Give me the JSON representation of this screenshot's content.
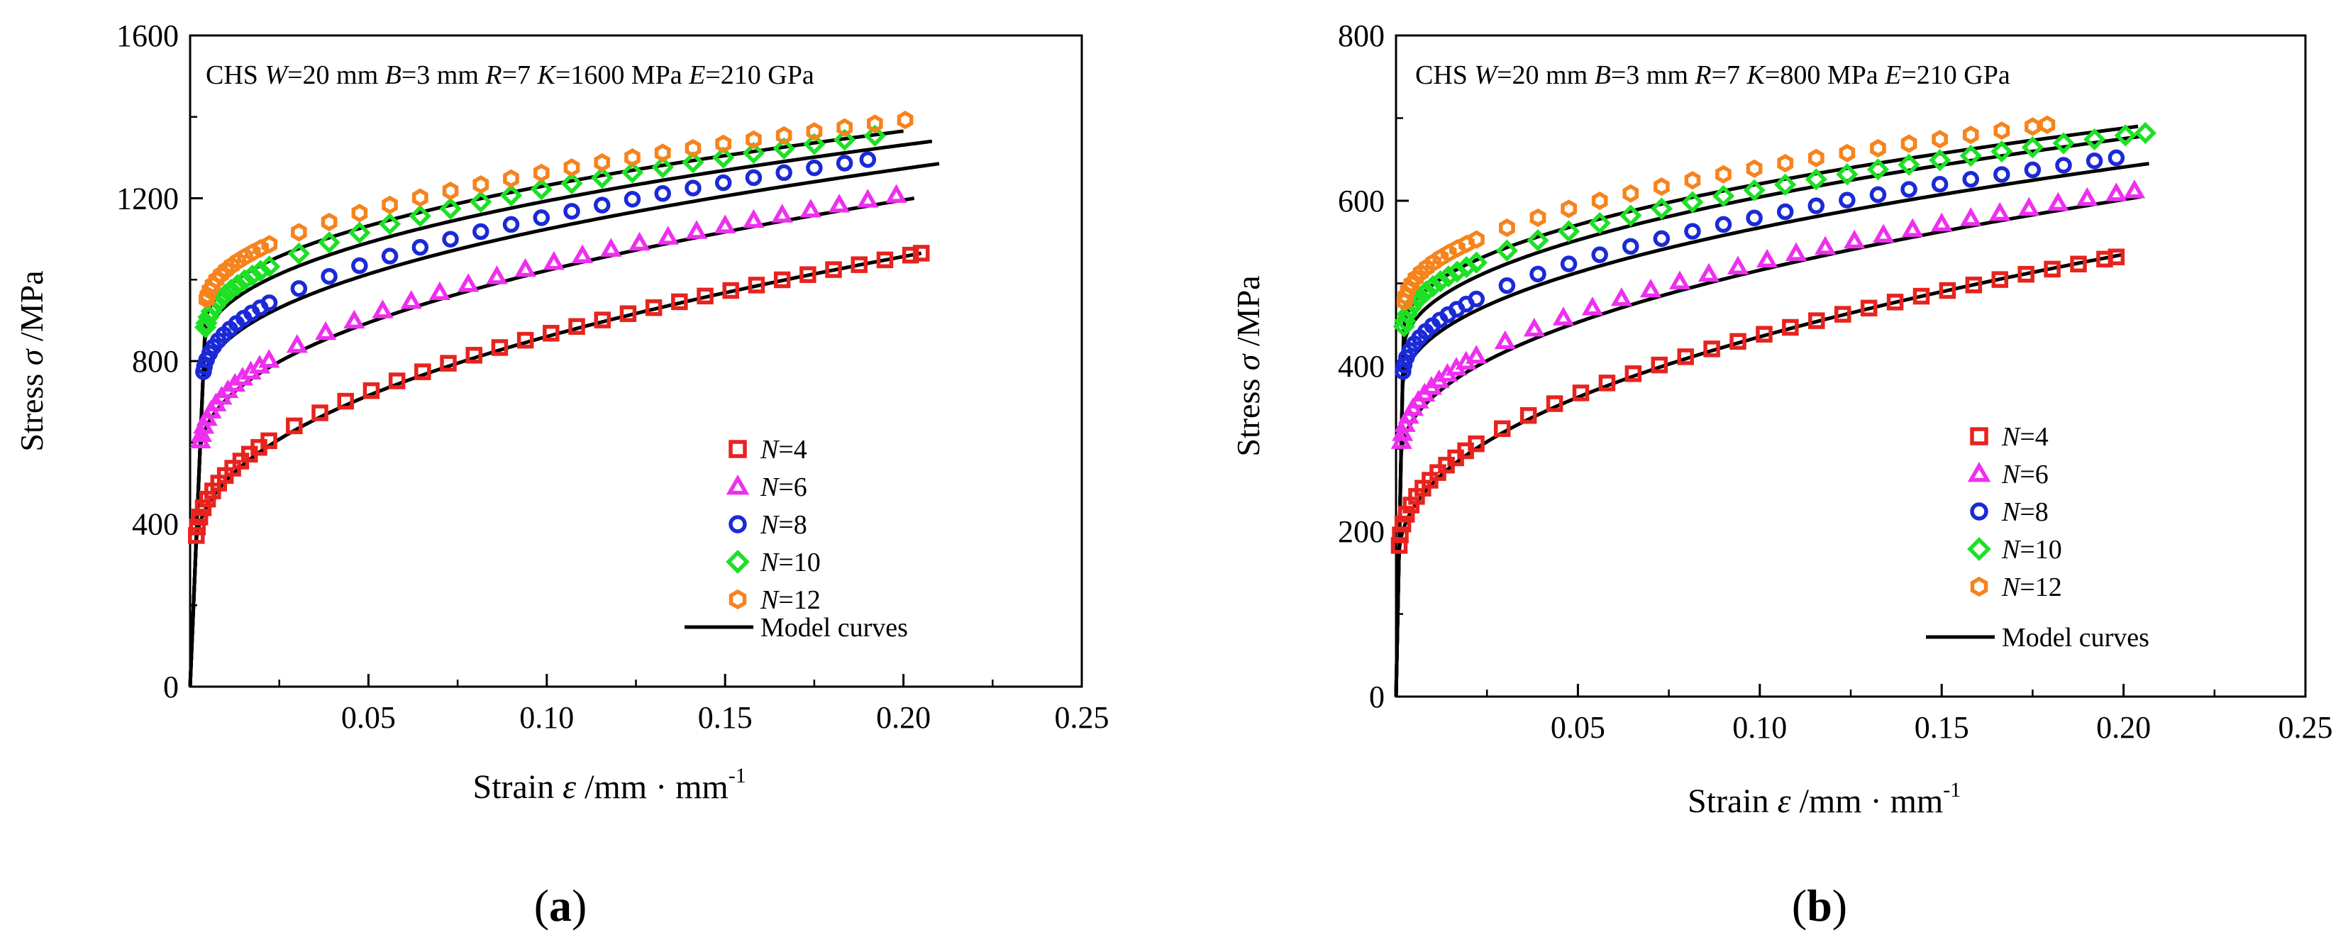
{
  "figure": {
    "panels": [
      {
        "label_open": "(",
        "label_letter": "a",
        "label_close": ")"
      },
      {
        "label_open": "(",
        "label_letter": "b",
        "label_close": ")"
      }
    ]
  },
  "chart_data": [
    {
      "type": "scatter",
      "title": "CHS W=20 mm B=3 mm R=7 K=1600 MPa E=210 GPa",
      "annotation_parts": [
        {
          "t": "CHS ",
          "i": false
        },
        {
          "t": "W",
          "i": true
        },
        {
          "t": "=20 mm ",
          "i": false
        },
        {
          "t": "B",
          "i": true
        },
        {
          "t": "=3 mm ",
          "i": false
        },
        {
          "t": "R",
          "i": true
        },
        {
          "t": "=7 ",
          "i": false
        },
        {
          "t": "K",
          "i": true
        },
        {
          "t": "=1600 MPa  ",
          "i": false
        },
        {
          "t": "E",
          "i": true
        },
        {
          "t": "=210 GPa",
          "i": false
        }
      ],
      "ylabel_text": "Stress ",
      "ylabel_symbol": "σ",
      "ylabel_unit": " /MPa",
      "xlabel_text": "Strain ",
      "xlabel_symbol": "ε",
      "xlabel_unit": " /mm · mm",
      "xlabel_sup": "-1",
      "xlim": [
        0,
        0.25
      ],
      "ylim": [
        0,
        1600
      ],
      "xticks": [
        0.05,
        0.1,
        0.15,
        0.2,
        0.25
      ],
      "xtick_labels": [
        "0.05",
        "0.10",
        "0.15",
        "0.20",
        "0.25"
      ],
      "yticks": [
        0,
        400,
        800,
        1200,
        1600
      ],
      "ytick_labels": [
        "0",
        "400",
        "800",
        "1200",
        "1600"
      ],
      "legend_position": "bottom-right",
      "legend_model_label": "Model curves",
      "series": [
        {
          "name": "N=4",
          "n_label": "N",
          "n_value": "=4",
          "marker": "square",
          "color": "#e8231e",
          "sigma_y": 350,
          "sigma_end": 1065,
          "x_end": 0.205,
          "step": 0.0072
        },
        {
          "name": "N=6",
          "n_label": "N",
          "n_value": "=6",
          "marker": "triangle",
          "color": "#ef2ff0",
          "sigma_y": 580,
          "sigma_end": 1210,
          "x_end": 0.2,
          "step": 0.008
        },
        {
          "name": "N=8",
          "n_label": "N",
          "n_value": "=8",
          "marker": "circle",
          "color": "#1a2ad6",
          "sigma_y": 750,
          "sigma_end": 1295,
          "x_end": 0.19,
          "step": 0.0085
        },
        {
          "name": "N=10",
          "n_label": "N",
          "n_value": "=10",
          "marker": "diamond",
          "color": "#1de025",
          "sigma_y": 860,
          "sigma_end": 1355,
          "x_end": 0.193,
          "step": 0.0085
        },
        {
          "name": "N=12",
          "n_label": "N",
          "n_value": "=12",
          "marker": "hexagon",
          "color": "#f7831c",
          "sigma_y": 930,
          "sigma_end": 1395,
          "x_end": 0.203,
          "step": 0.0085
        }
      ],
      "model_curves": [
        {
          "name": "Model N=4",
          "sigma_y": 330,
          "sigma_end": 1065,
          "x_end": 0.205
        },
        {
          "name": "Model N=6",
          "sigma_y": 560,
          "sigma_end": 1200,
          "x_end": 0.203
        },
        {
          "name": "Model N=8",
          "sigma_y": 730,
          "sigma_end": 1285,
          "x_end": 0.21
        },
        {
          "name": "Model N=10",
          "sigma_y": 830,
          "sigma_end": 1340,
          "x_end": 0.208
        },
        {
          "name": "Model N=12",
          "sigma_y": 880,
          "sigma_end": 1365,
          "x_end": 0.2
        }
      ]
    },
    {
      "type": "scatter",
      "title": "CHS W=20 mm B=3 mm R=7 K=800 MPa E=210 GPa",
      "annotation_parts": [
        {
          "t": "CHS ",
          "i": false
        },
        {
          "t": "W",
          "i": true
        },
        {
          "t": "=20 mm ",
          "i": false
        },
        {
          "t": "B",
          "i": true
        },
        {
          "t": "=3 mm ",
          "i": false
        },
        {
          "t": "R",
          "i": true
        },
        {
          "t": "=7 ",
          "i": false
        },
        {
          "t": "K",
          "i": true
        },
        {
          "t": "=800 MPa  ",
          "i": false
        },
        {
          "t": "E",
          "i": true
        },
        {
          "t": "=210 GPa",
          "i": false
        }
      ],
      "ylabel_text": "Stress ",
      "ylabel_symbol": "σ",
      "ylabel_unit": " /MPa",
      "xlabel_text": "Strain ",
      "xlabel_symbol": "ε",
      "xlabel_unit": " /mm · mm",
      "xlabel_sup": "-1",
      "xlim": [
        0,
        0.25
      ],
      "ylim": [
        0,
        800
      ],
      "xticks": [
        0.05,
        0.1,
        0.15,
        0.2,
        0.25
      ],
      "xtick_labels": [
        "0.05",
        "0.10",
        "0.15",
        "0.20",
        "0.25"
      ],
      "yticks": [
        0,
        200,
        400,
        600,
        800
      ],
      "ytick_labels": [
        "0",
        "200",
        "400",
        "600",
        "800"
      ],
      "legend_position": "bottom-right",
      "legend_model_label": "Model curves",
      "series": [
        {
          "name": "N=4",
          "n_label": "N",
          "n_value": "=4",
          "marker": "square",
          "color": "#e8231e",
          "sigma_y": 175,
          "sigma_end": 532,
          "x_end": 0.198,
          "step": 0.0072
        },
        {
          "name": "N=6",
          "n_label": "N",
          "n_value": "=6",
          "marker": "triangle",
          "color": "#ef2ff0",
          "sigma_y": 300,
          "sigma_end": 612,
          "x_end": 0.203,
          "step": 0.008
        },
        {
          "name": "N=8",
          "n_label": "N",
          "n_value": "=8",
          "marker": "circle",
          "color": "#1a2ad6",
          "sigma_y": 385,
          "sigma_end": 652,
          "x_end": 0.198,
          "step": 0.0085
        },
        {
          "name": "N=10",
          "n_label": "N",
          "n_value": "=10",
          "marker": "diamond",
          "color": "#1de025",
          "sigma_y": 440,
          "sigma_end": 682,
          "x_end": 0.206,
          "step": 0.0085
        },
        {
          "name": "N=12",
          "n_label": "N",
          "n_value": "=12",
          "marker": "hexagon",
          "color": "#f7831c",
          "sigma_y": 470,
          "sigma_end": 692,
          "x_end": 0.179,
          "step": 0.0085
        }
      ],
      "model_curves": [
        {
          "name": "Model N=4",
          "sigma_y": 165,
          "sigma_end": 535,
          "x_end": 0.2
        },
        {
          "name": "Model N=6",
          "sigma_y": 285,
          "sigma_end": 605,
          "x_end": 0.205
        },
        {
          "name": "Model N=8",
          "sigma_y": 370,
          "sigma_end": 645,
          "x_end": 0.207
        },
        {
          "name": "Model N=10",
          "sigma_y": 415,
          "sigma_end": 678,
          "x_end": 0.205
        },
        {
          "name": "Model N=12",
          "sigma_y": 440,
          "sigma_end": 690,
          "x_end": 0.204
        }
      ]
    }
  ]
}
